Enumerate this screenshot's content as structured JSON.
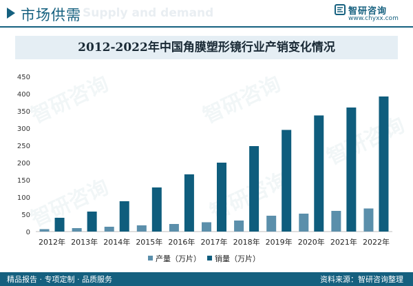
{
  "header": {
    "section_title": "市场供需",
    "ghost_text": "Supply and demand",
    "brand_name": "智研咨询",
    "brand_url": "www.chyxx.com",
    "brand_icon": "zhiyan-logo-icon"
  },
  "footer": {
    "left_text": "精品报告 · 专项定制 · 品质服务",
    "source_text": "资料来源：智研咨询整理"
  },
  "watermark_text": "智研咨询",
  "colors": {
    "accent": "#15607f",
    "production": "#5b8fab",
    "sales": "#0f5d7d"
  },
  "chart_data": {
    "type": "bar",
    "title": "2012-2022年中国角膜塑形镜行业产销变化情况",
    "categories": [
      "2012年",
      "2013年",
      "2014年",
      "2015年",
      "2016年",
      "2017年",
      "2018年",
      "2019年",
      "2020年",
      "2021年",
      "2022年"
    ],
    "series": [
      {
        "name": "产量（万片）",
        "values": [
          7,
          10,
          14,
          18,
          22,
          27,
          32,
          46,
          52,
          60,
          67
        ]
      },
      {
        "name": "销量（万片）",
        "values": [
          40,
          58,
          88,
          128,
          166,
          200,
          248,
          295,
          337,
          360,
          392
        ]
      }
    ],
    "yticks": [
      0,
      50,
      100,
      150,
      200,
      250,
      300,
      350,
      400,
      450
    ],
    "ylim": [
      0,
      450
    ],
    "grid": false,
    "legend_position": "bottom-center"
  }
}
